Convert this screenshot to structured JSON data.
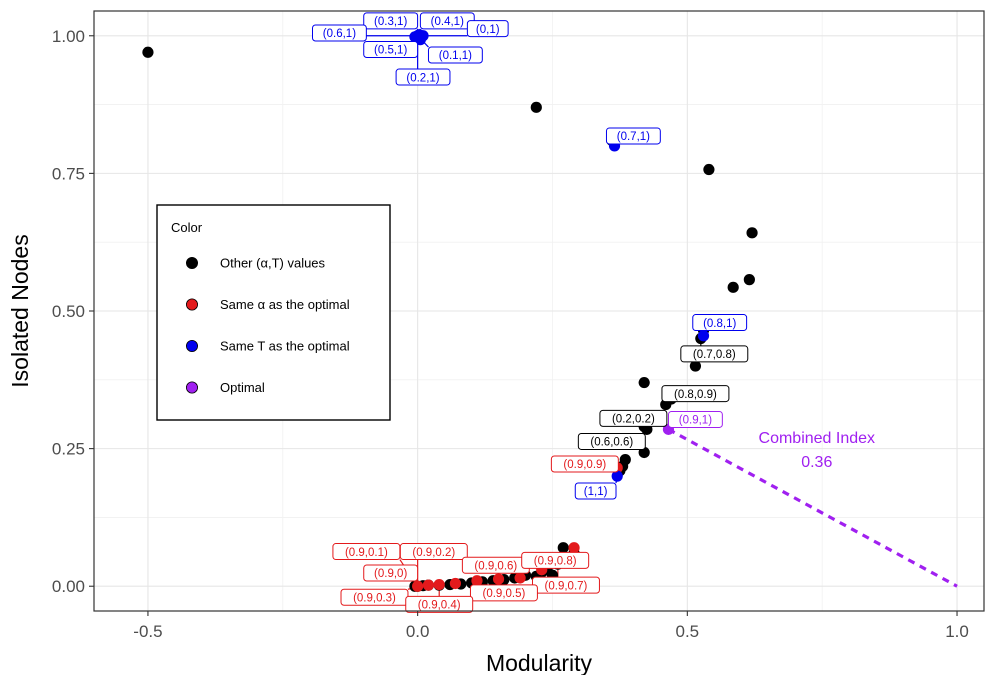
{
  "chart_data": {
    "type": "scatter",
    "xlabel": "Modularity",
    "ylabel": "Isolated Nodes",
    "xlim": [
      -0.6,
      1.05
    ],
    "ylim": [
      -0.045,
      1.045
    ],
    "x_ticks": [
      -0.5,
      0.0,
      0.5,
      1.0
    ],
    "x_tick_labels": [
      "-0.5",
      "0.0",
      "0.5",
      "1.0"
    ],
    "y_ticks": [
      0.0,
      0.25,
      0.5,
      0.75,
      1.0
    ],
    "y_tick_labels": [
      "0.00",
      "0.25",
      "0.50",
      "0.75",
      "1.00"
    ],
    "grid": true,
    "legend": {
      "title": "Color",
      "placement": "left-middle",
      "entries": [
        {
          "label": "Other (α,T) values",
          "color": "#000000"
        },
        {
          "label": "Same α as the optimal",
          "color": "#e31a1c"
        },
        {
          "label": "Same T as the optimal",
          "color": "#0000ee"
        },
        {
          "label": "Optimal",
          "color": "#a020f0"
        }
      ]
    },
    "colors": {
      "other": "#000000",
      "same_alpha": "#e31a1c",
      "same_t": "#0000ee",
      "optimal": "#a020f0"
    },
    "series": [
      {
        "group": "other",
        "points": [
          [
            -0.5,
            0.97
          ],
          [
            0.22,
            0.87
          ],
          [
            0.36,
            0.81
          ],
          [
            0.54,
            0.757
          ],
          [
            0.62,
            0.642
          ],
          [
            0.615,
            0.557
          ],
          [
            0.585,
            0.543
          ],
          [
            0.53,
            0.465
          ],
          [
            0.525,
            0.45
          ],
          [
            0.515,
            0.4
          ],
          [
            0.42,
            0.37
          ],
          [
            0.47,
            0.34
          ],
          [
            0.46,
            0.33
          ],
          [
            0.43,
            0.31
          ],
          [
            0.42,
            0.29
          ],
          [
            0.425,
            0.285
          ],
          [
            0.385,
            0.23
          ],
          [
            0.38,
            0.218
          ],
          [
            0.375,
            0.21
          ],
          [
            0.42,
            0.243
          ],
          [
            0.27,
            0.07
          ],
          [
            0.3,
            0.045
          ],
          [
            0.26,
            0.04
          ],
          [
            0.24,
            0.03
          ],
          [
            0.2,
            0.02
          ],
          [
            0.22,
            0.018
          ],
          [
            0.18,
            0.015
          ],
          [
            0.16,
            0.012
          ],
          [
            0.14,
            0.01
          ],
          [
            0.12,
            0.008
          ],
          [
            0.1,
            0.006
          ],
          [
            0.08,
            0.004
          ],
          [
            0.06,
            0.003
          ],
          [
            0.04,
            0.002
          ],
          [
            0.02,
            0.002
          ],
          [
            0.01,
            0.001
          ],
          [
            0.0,
            0.0
          ],
          [
            -0.005,
            0.0
          ],
          [
            0.15,
            0.005
          ],
          [
            0.25,
            0.02
          ],
          [
            0.29,
            0.06
          ],
          [
            0.23,
            0.025
          ]
        ]
      },
      {
        "group": "same_alpha",
        "points": [
          [
            0.29,
            0.07
          ],
          [
            0.37,
            0.215
          ],
          [
            0.0,
            0.0
          ],
          [
            0.02,
            0.002
          ],
          [
            0.04,
            0.003
          ],
          [
            0.07,
            0.005
          ],
          [
            0.11,
            0.01
          ],
          [
            0.15,
            0.013
          ],
          [
            0.19,
            0.015
          ],
          [
            0.23,
            0.03
          ],
          [
            0.26,
            0.045
          ]
        ]
      },
      {
        "group": "same_t",
        "points": [
          [
            0.0,
            1.0
          ],
          [
            0.005,
            1.0
          ],
          [
            -0.005,
            0.998
          ],
          [
            0.0,
            0.995
          ],
          [
            0.005,
            0.993
          ],
          [
            0.01,
            1.0
          ],
          [
            0.003,
            1.002
          ],
          [
            0.365,
            0.8
          ],
          [
            0.53,
            0.455
          ],
          [
            0.37,
            0.2
          ]
        ]
      },
      {
        "group": "optimal",
        "points": [
          [
            0.465,
            0.285
          ]
        ]
      }
    ],
    "labels": [
      {
        "text": "(0.3,1)",
        "group": "same_t",
        "at": [
          -0.05,
          1.027
        ],
        "anchor": [
          0.0,
          1.0
        ]
      },
      {
        "text": "(0.4,1)",
        "group": "same_t",
        "at": [
          0.055,
          1.027
        ],
        "anchor": [
          0.0,
          1.0
        ]
      },
      {
        "text": "(0,1)",
        "group": "same_t",
        "at": [
          0.13,
          1.013
        ],
        "anchor": [
          0.0,
          1.0
        ]
      },
      {
        "text": "(0.6,1)",
        "group": "same_t",
        "at": [
          -0.145,
          1.005
        ],
        "anchor": [
          0.0,
          1.0
        ]
      },
      {
        "text": "(0.5,1)",
        "group": "same_t",
        "at": [
          -0.05,
          0.975
        ],
        "anchor": [
          0.0,
          1.0
        ]
      },
      {
        "text": "(0.1,1)",
        "group": "same_t",
        "at": [
          0.07,
          0.965
        ],
        "anchor": [
          0.0,
          1.0
        ]
      },
      {
        "text": "(0.2,1)",
        "group": "same_t",
        "at": [
          0.01,
          0.925
        ],
        "anchor": [
          0.0,
          1.0
        ]
      },
      {
        "text": "(0.7,1)",
        "group": "same_t",
        "at": [
          0.4,
          0.818
        ],
        "anchor": [
          0.365,
          0.8
        ]
      },
      {
        "text": "(0.8,1)",
        "group": "same_t",
        "at": [
          0.56,
          0.479
        ],
        "anchor": [
          0.53,
          0.455
        ]
      },
      {
        "text": "(1,1)",
        "group": "same_t",
        "at": [
          0.33,
          0.173
        ],
        "anchor": [
          0.37,
          0.2
        ]
      },
      {
        "text": "(0.7,0.8)",
        "group": "other",
        "at": [
          0.55,
          0.422
        ],
        "anchor": [
          0.525,
          0.45
        ]
      },
      {
        "text": "(0.8,0.9)",
        "group": "other",
        "at": [
          0.515,
          0.35
        ],
        "anchor": [
          0.47,
          0.34
        ]
      },
      {
        "text": "(0.2,0.2)",
        "group": "other",
        "at": [
          0.4,
          0.305
        ],
        "anchor": [
          0.43,
          0.31
        ]
      },
      {
        "text": "(0.6,0.6)",
        "group": "other",
        "at": [
          0.36,
          0.263
        ],
        "anchor": [
          0.42,
          0.29
        ]
      },
      {
        "text": "(0.9,1)",
        "group": "optimal",
        "at": [
          0.515,
          0.303
        ],
        "anchor": [
          0.465,
          0.285
        ]
      },
      {
        "text": "(0.9,0.9)",
        "group": "same_alpha",
        "at": [
          0.31,
          0.222
        ],
        "anchor": [
          0.37,
          0.215
        ]
      },
      {
        "text": "(0.9,0.1)",
        "group": "same_alpha",
        "at": [
          -0.095,
          0.063
        ],
        "anchor": [
          0.0,
          0.0
        ]
      },
      {
        "text": "(0.9,0.2)",
        "group": "same_alpha",
        "at": [
          0.03,
          0.063
        ],
        "anchor": [
          0.0,
          0.0
        ]
      },
      {
        "text": "(0.9,0)",
        "group": "same_alpha",
        "at": [
          -0.05,
          0.024
        ],
        "anchor": [
          0.0,
          0.0
        ]
      },
      {
        "text": "(0.9,0.6)",
        "group": "same_alpha",
        "at": [
          0.145,
          0.038
        ],
        "anchor": [
          0.15,
          0.013
        ]
      },
      {
        "text": "(0.9,0.8)",
        "group": "same_alpha",
        "at": [
          0.255,
          0.047
        ],
        "anchor": [
          0.29,
          0.07
        ]
      },
      {
        "text": "(0.9,0.7)",
        "group": "same_alpha",
        "at": [
          0.275,
          0.002
        ],
        "anchor": [
          0.26,
          0.045
        ]
      },
      {
        "text": "(0.9,0.5)",
        "group": "same_alpha",
        "at": [
          0.16,
          -0.012
        ],
        "anchor": [
          0.15,
          0.013
        ]
      },
      {
        "text": "(0.9,0.3)",
        "group": "same_alpha",
        "at": [
          -0.08,
          -0.02
        ],
        "anchor": [
          0.02,
          0.002
        ]
      },
      {
        "text": "(0.9,0.4)",
        "group": "same_alpha",
        "at": [
          0.04,
          -0.033
        ],
        "anchor": [
          0.04,
          0.003
        ]
      }
    ],
    "annotation": {
      "text": "Combined Index",
      "value": "0.36",
      "color": "#a020f0",
      "line_from": [
        0.465,
        0.285
      ],
      "line_to": [
        1.0,
        0.0
      ],
      "text_at": [
        0.74,
        0.26
      ],
      "value_at": [
        0.74,
        0.217
      ]
    }
  }
}
